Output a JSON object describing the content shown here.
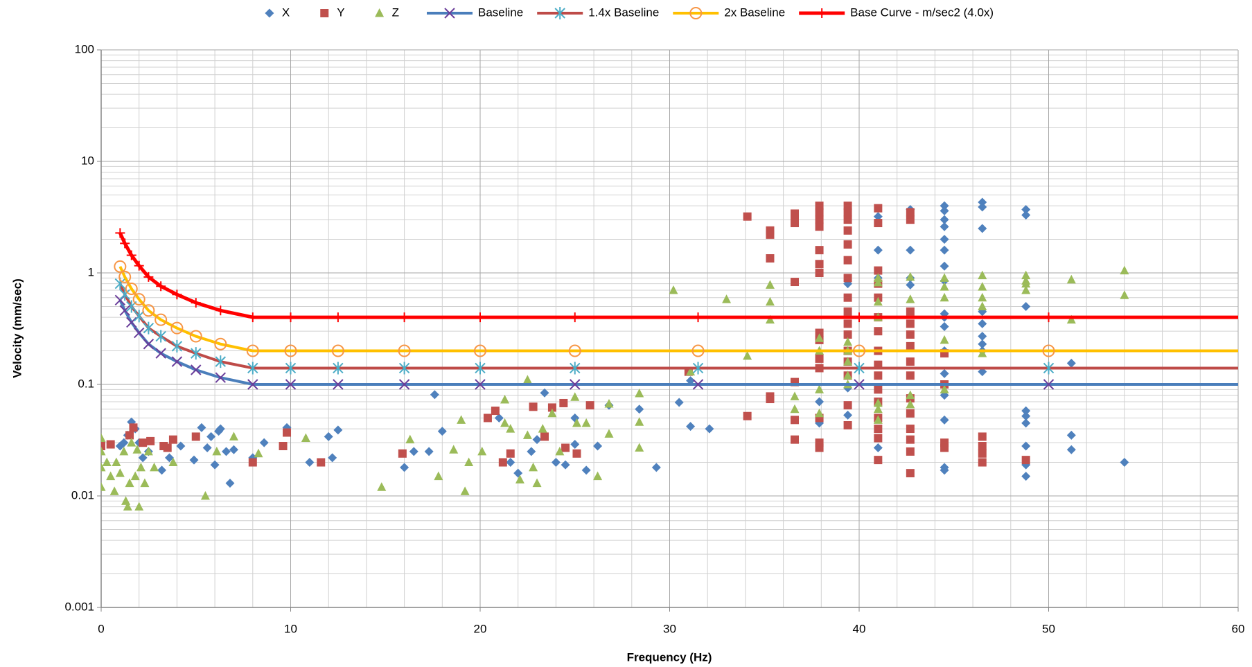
{
  "chart_data": {
    "type": "scatter",
    "x_label": "Frequency (Hz)",
    "y_label": "Velocity (mm/sec)",
    "xlim": [
      0,
      60
    ],
    "xticks": [
      0,
      10,
      20,
      30,
      40,
      50,
      60
    ],
    "ylim": [
      0.001,
      100
    ],
    "yticks": [
      0.001,
      0.01,
      0.1,
      1,
      10,
      100
    ],
    "ylog": true,
    "grid": true,
    "minor_grid": true,
    "x_minor_divisions": 5,
    "legend": "top",
    "series": [
      {
        "name": "X",
        "kind": "scatter",
        "marker": "diamond",
        "color": "#4f81bd",
        "x": [
          1.0,
          1.2,
          1.4,
          1.6,
          1.8,
          2.0,
          2.2,
          2.5,
          3.2,
          3.6,
          4.2,
          4.9,
          5.3,
          5.6,
          5.8,
          6.0,
          6.2,
          6.3,
          6.6,
          6.8,
          7.0,
          8.0,
          8.6,
          9.8,
          11.0,
          12.0,
          12.5,
          12.2,
          16,
          16.5,
          17.6,
          18,
          17.3,
          21,
          21.6,
          22,
          22.7,
          23,
          23.4,
          24,
          24.5,
          25,
          25,
          25.6,
          26.2,
          26.8,
          28.4,
          29.3,
          30.5,
          31.1,
          31.1,
          32.1,
          37.9,
          37.9,
          39.4,
          39.4,
          39.4,
          41,
          41,
          41,
          41,
          42.7,
          42.7,
          42.7,
          42.7,
          44.5,
          44.5,
          44.5,
          44.5,
          44.5,
          44.5,
          44.5,
          44.5,
          44.5,
          44.5,
          44.5,
          44.5,
          44.5,
          44.5,
          44.5,
          44.5,
          44.5,
          46.5,
          46.5,
          46.5,
          46.5,
          46.5,
          46.5,
          46.5,
          46.5,
          46.5,
          48.8,
          48.8,
          48.8,
          48.8,
          48.8,
          48.8,
          48.8,
          48.8,
          48.8,
          51.2,
          51.2,
          51.2,
          54
        ],
        "values": [
          0.028,
          0.03,
          0.035,
          0.046,
          0.04,
          0.03,
          0.022,
          0.025,
          0.017,
          0.022,
          0.028,
          0.021,
          0.041,
          0.027,
          0.034,
          0.019,
          0.038,
          0.04,
          0.025,
          0.013,
          0.026,
          0.022,
          0.03,
          0.041,
          0.02,
          0.034,
          0.039,
          0.022,
          0.018,
          0.025,
          0.081,
          0.038,
          0.025,
          0.05,
          0.02,
          0.016,
          0.025,
          0.032,
          0.084,
          0.02,
          0.019,
          0.05,
          0.029,
          0.017,
          0.028,
          0.065,
          0.06,
          0.018,
          0.069,
          0.042,
          0.108,
          0.04,
          0.045,
          0.07,
          0.8,
          0.093,
          0.053,
          3.2,
          1.6,
          0.9,
          0.027,
          3.7,
          1.6,
          0.9,
          0.78,
          4.0,
          3.6,
          3.0,
          2.6,
          2.0,
          1.6,
          1.15,
          0.85,
          0.43,
          0.4,
          0.33,
          0.2,
          0.125,
          0.08,
          0.048,
          0.018,
          0.017,
          4.3,
          3.9,
          2.5,
          0.45,
          0.35,
          0.27,
          0.23,
          0.13,
          0.2,
          3.7,
          3.3,
          0.5,
          0.058,
          0.052,
          0.045,
          0.028,
          0.019,
          0.015,
          0.155,
          0.035,
          0.026,
          0.02
        ]
      },
      {
        "name": "Y",
        "kind": "scatter",
        "marker": "square",
        "color": "#c0504d",
        "x": [
          0,
          0.5,
          1.5,
          1.7,
          2.2,
          2.6,
          3.3,
          3.5,
          3.8,
          5.0,
          8.0,
          9.6,
          9.8,
          11.6,
          15.9,
          20.4,
          20.8,
          21.2,
          21.6,
          22.8,
          23.4,
          23.8,
          24.4,
          24.5,
          25.1,
          25.8,
          31,
          34.1,
          34.1,
          35.3,
          35.3,
          35.3,
          35.3,
          35.3,
          36.6,
          36.6,
          36.6,
          36.6,
          36.6,
          36.6,
          36.6,
          37.9,
          37.9,
          37.9,
          37.9,
          37.9,
          37.9,
          37.9,
          37.9,
          37.9,
          37.9,
          37.9,
          37.9,
          37.9,
          37.9,
          39.4,
          39.4,
          39.4,
          39.4,
          39.4,
          39.4,
          39.4,
          39.4,
          39.4,
          39.4,
          39.4,
          39.4,
          39.4,
          39.4,
          39.4,
          39.4,
          41,
          41,
          41,
          41,
          41,
          41,
          41,
          41,
          41,
          41,
          41,
          41,
          41,
          41,
          41,
          41,
          42.7,
          42.7,
          42.7,
          42.7,
          42.7,
          42.7,
          42.7,
          42.7,
          42.7,
          42.7,
          42.7,
          42.7,
          42.7,
          42.7,
          44.5,
          44.5,
          44.5,
          44.5,
          46.5,
          46.5,
          46.5,
          46.5,
          48.8
        ],
        "values": [
          0.028,
          0.029,
          0.035,
          0.041,
          0.03,
          0.031,
          0.028,
          0.027,
          0.032,
          0.034,
          0.02,
          0.028,
          0.037,
          0.02,
          0.024,
          0.05,
          0.058,
          0.02,
          0.024,
          0.063,
          0.034,
          0.062,
          0.068,
          0.027,
          0.024,
          0.065,
          0.13,
          3.2,
          0.052,
          2.4,
          2.2,
          1.35,
          0.078,
          0.074,
          3.4,
          3.0,
          2.8,
          0.83,
          0.105,
          0.048,
          0.032,
          4.0,
          3.5,
          3.0,
          2.6,
          1.6,
          1.2,
          1.0,
          0.29,
          0.25,
          0.17,
          0.14,
          0.05,
          0.03,
          0.027,
          4.0,
          3.5,
          3.0,
          2.4,
          1.8,
          1.3,
          0.9,
          0.6,
          0.45,
          0.35,
          0.28,
          0.2,
          0.16,
          0.12,
          0.065,
          0.043,
          3.8,
          2.8,
          1.05,
          0.8,
          0.6,
          0.4,
          0.3,
          0.2,
          0.15,
          0.12,
          0.09,
          0.07,
          0.05,
          0.04,
          0.033,
          0.021,
          3.5,
          3.0,
          0.45,
          0.35,
          0.28,
          0.22,
          0.16,
          0.12,
          0.075,
          0.055,
          0.04,
          0.032,
          0.025,
          0.016,
          0.19,
          0.1,
          0.03,
          0.027,
          0.034,
          0.028,
          0.024,
          0.02,
          0.021
        ]
      },
      {
        "name": "Z",
        "kind": "scatter",
        "marker": "triangle",
        "color": "#9bbb59",
        "x": [
          0,
          0,
          0,
          0,
          0.3,
          0.5,
          0.7,
          0.8,
          1.0,
          1.2,
          1.3,
          1.4,
          1.5,
          1.6,
          1.8,
          1.9,
          2.0,
          2.1,
          2.3,
          2.5,
          2.8,
          3.8,
          5.5,
          6.1,
          7.0,
          8.3,
          10.8,
          14.8,
          16.3,
          17.8,
          18.6,
          19.0,
          19.2,
          19.4,
          20.1,
          21.3,
          21.3,
          21.6,
          22.1,
          22.5,
          22.5,
          22.8,
          23.0,
          23.3,
          23.8,
          24.2,
          25.0,
          25.1,
          25.6,
          26.2,
          26.8,
          26.8,
          28.4,
          28.4,
          28.4,
          30.2,
          31.1,
          33.0,
          34.1,
          35.3,
          35.3,
          35.3,
          36.6,
          36.6,
          37.9,
          37.9,
          37.9,
          37.9,
          39.4,
          39.4,
          39.4,
          39.4,
          39.4,
          41,
          41,
          41,
          41,
          41,
          41,
          41,
          42.7,
          42.7,
          42.7,
          42.7,
          44.5,
          44.5,
          44.5,
          44.5,
          44.5,
          46.5,
          46.5,
          46.5,
          46.5,
          46.5,
          48.8,
          48.8,
          48.8,
          48.8,
          51.2,
          51.2,
          54,
          54
        ],
        "values": [
          0.033,
          0.025,
          0.018,
          0.012,
          0.02,
          0.015,
          0.011,
          0.02,
          0.016,
          0.025,
          0.009,
          0.008,
          0.013,
          0.03,
          0.015,
          0.026,
          0.008,
          0.018,
          0.013,
          0.025,
          0.018,
          0.02,
          0.01,
          0.025,
          0.034,
          0.024,
          0.033,
          0.012,
          0.032,
          0.015,
          0.026,
          0.048,
          0.011,
          0.02,
          0.025,
          0.073,
          0.045,
          0.04,
          0.014,
          0.11,
          0.035,
          0.018,
          0.013,
          0.04,
          0.055,
          0.025,
          0.077,
          0.045,
          0.045,
          0.015,
          0.067,
          0.036,
          0.083,
          0.046,
          0.027,
          0.7,
          0.13,
          0.58,
          0.18,
          0.78,
          0.55,
          0.38,
          0.078,
          0.06,
          0.26,
          0.2,
          0.09,
          0.055,
          0.24,
          0.2,
          0.16,
          0.12,
          0.1,
          0.9,
          0.82,
          0.55,
          0.4,
          0.068,
          0.06,
          0.048,
          0.92,
          0.58,
          0.08,
          0.066,
          0.9,
          0.75,
          0.6,
          0.25,
          0.09,
          0.95,
          0.75,
          0.6,
          0.5,
          0.19,
          0.95,
          0.85,
          0.8,
          0.7,
          0.87,
          0.38,
          1.05,
          0.63
        ]
      },
      {
        "name": "Baseline",
        "kind": "line",
        "marker": "x",
        "color": "#4a7ebb",
        "marker_color": "#6a3d9a",
        "x": [
          1,
          1.25,
          1.6,
          2,
          2.5,
          3.15,
          4,
          5,
          6.3,
          8,
          10,
          12.5,
          16,
          20,
          25,
          31.5,
          40,
          50,
          63
        ],
        "values": [
          0.57,
          0.46,
          0.36,
          0.29,
          0.23,
          0.19,
          0.16,
          0.135,
          0.115,
          0.1,
          0.1,
          0.1,
          0.1,
          0.1,
          0.1,
          0.1,
          0.1,
          0.1,
          0.1
        ]
      },
      {
        "name": "1.4x Baseline",
        "kind": "line",
        "marker": "asterisk",
        "color": "#be4b48",
        "marker_color": "#4bacc6",
        "x": [
          1,
          1.25,
          1.6,
          2,
          2.5,
          3.15,
          4,
          5,
          6.3,
          8,
          10,
          12.5,
          16,
          20,
          25,
          31.5,
          40,
          50,
          63
        ],
        "values": [
          0.8,
          0.64,
          0.5,
          0.41,
          0.32,
          0.27,
          0.22,
          0.19,
          0.16,
          0.14,
          0.14,
          0.14,
          0.14,
          0.14,
          0.14,
          0.14,
          0.14,
          0.14,
          0.14
        ]
      },
      {
        "name": "2x Baseline",
        "kind": "line",
        "marker": "circle",
        "color": "#ffc000",
        "marker_color": "#f79646",
        "x": [
          1,
          1.25,
          1.6,
          2,
          2.5,
          3.15,
          4,
          5,
          6.3,
          8,
          10,
          12.5,
          16,
          20,
          25,
          31.5,
          40,
          50,
          63
        ],
        "values": [
          1.14,
          0.92,
          0.72,
          0.58,
          0.46,
          0.38,
          0.32,
          0.27,
          0.23,
          0.2,
          0.2,
          0.2,
          0.2,
          0.2,
          0.2,
          0.2,
          0.2,
          0.2,
          0.2
        ]
      },
      {
        "name": "Base Curve - m/sec2 (4.0x)",
        "kind": "line",
        "marker": "plus",
        "color": "#ff0000",
        "marker_color": "#ff0000",
        "x": [
          1,
          1.25,
          1.6,
          2,
          2.5,
          3.15,
          4,
          5,
          6.3,
          8,
          10,
          12.5,
          16,
          20,
          25,
          31.5,
          40,
          50,
          63
        ],
        "values": [
          2.28,
          1.84,
          1.44,
          1.16,
          0.92,
          0.76,
          0.64,
          0.54,
          0.46,
          0.4,
          0.4,
          0.4,
          0.4,
          0.4,
          0.4,
          0.4,
          0.4,
          0.4,
          0.4
        ]
      }
    ]
  }
}
